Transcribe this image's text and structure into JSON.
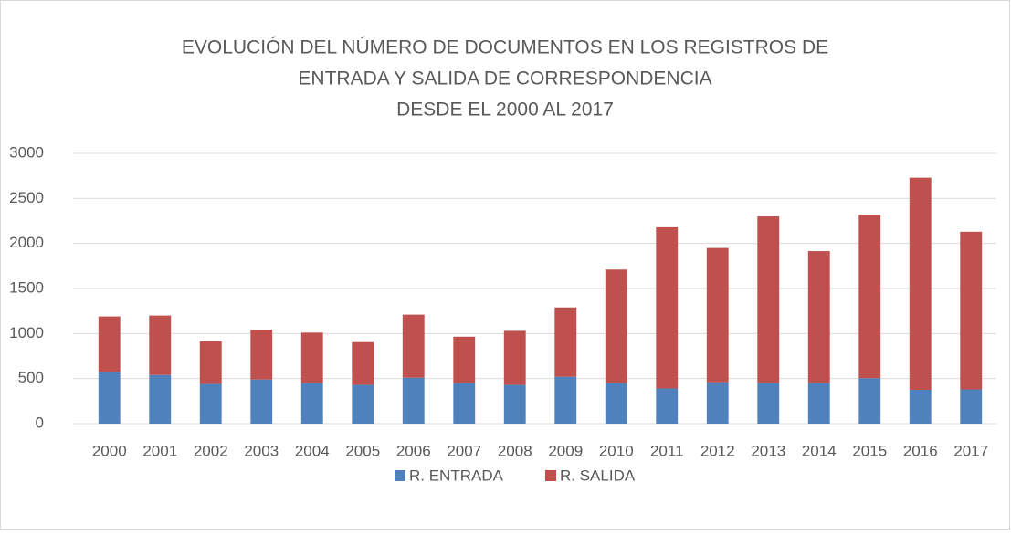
{
  "chart_data": {
    "type": "stacked_bar",
    "title": [
      "EVOLUCIÓN DEL NÚMERO DE DOCUMENTOS EN LOS REGISTROS DE",
      "ENTRADA Y SALIDA DE CORRESPONDENCIA",
      "DESDE EL 2000 AL 2017"
    ],
    "categories": [
      "2000",
      "2001",
      "2002",
      "2003",
      "2004",
      "2005",
      "2006",
      "2007",
      "2008",
      "2009",
      "2010",
      "2011",
      "2012",
      "2013",
      "2014",
      "2015",
      "2016",
      "2017"
    ],
    "series": [
      {
        "name": "R. ENTRADA",
        "color": "#4f81bd",
        "values": [
          570,
          540,
          440,
          490,
          450,
          430,
          510,
          450,
          430,
          520,
          450,
          390,
          460,
          450,
          450,
          505,
          375,
          380
        ]
      },
      {
        "name": "R. SALIDA",
        "color": "#c0504d",
        "values": [
          620,
          660,
          475,
          550,
          560,
          475,
          700,
          515,
          600,
          770,
          1260,
          1790,
          1490,
          1850,
          1465,
          1815,
          2355,
          1750
        ]
      }
    ],
    "ylim": [
      0,
      3000
    ],
    "yticks": [
      0,
      500,
      1000,
      1500,
      2000,
      2500,
      3000
    ],
    "grid": true,
    "legend": "bottom"
  }
}
